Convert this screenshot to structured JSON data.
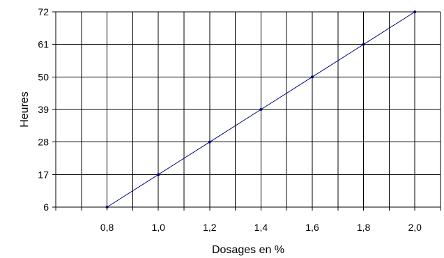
{
  "chart_data": {
    "type": "line",
    "xlabel": "Dosages en %",
    "ylabel": "Heures",
    "x_tick_labels": [
      "0,8",
      "1,0",
      "1,2",
      "1,4",
      "1,6",
      "1,8",
      "2,0"
    ],
    "y_tick_labels": [
      "6",
      "17",
      "28",
      "39",
      "50",
      "61",
      "72"
    ],
    "x_ticks": [
      0.8,
      1.0,
      1.2,
      1.4,
      1.6,
      1.8,
      2.0
    ],
    "y_ticks": [
      6,
      17,
      28,
      39,
      50,
      61,
      72
    ],
    "xlim": [
      0.6,
      2.1
    ],
    "ylim": [
      6,
      72
    ],
    "grid": true,
    "legend": "none",
    "series": [
      {
        "x": [
          0.8,
          1.0,
          1.2,
          1.4,
          1.6,
          1.8,
          2.0
        ],
        "y": [
          6,
          17,
          28,
          39,
          50,
          61,
          72
        ],
        "color": "#000080"
      }
    ]
  }
}
